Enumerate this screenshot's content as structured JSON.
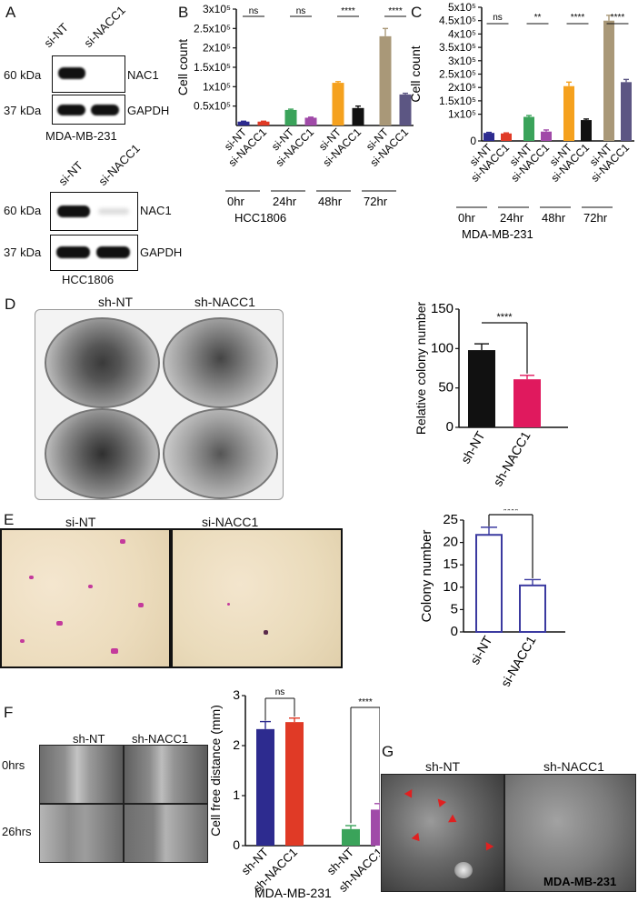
{
  "panels": {
    "A": "A",
    "B": "B",
    "C": "C",
    "D": "D",
    "E": "E",
    "F": "F",
    "G": "G"
  },
  "blotA1": {
    "top_labels": [
      "si-NT",
      "si-NACC1"
    ],
    "rows": [
      {
        "mw": "60 kDa",
        "protein": "NAC1"
      },
      {
        "mw": "37 kDa",
        "protein": "GAPDH"
      }
    ],
    "cell_line": "MDA-MB-231"
  },
  "blotA2": {
    "top_labels": [
      "si-NT",
      "si-NACC1"
    ],
    "rows": [
      {
        "mw": "60 kDa",
        "protein": "NAC1"
      },
      {
        "mw": "37 kDa",
        "protein": "GAPDH"
      }
    ],
    "cell_line": "HCC1806"
  },
  "imgD": {
    "labels": [
      "sh-NT",
      "sh-NACC1"
    ]
  },
  "imgE": {
    "labels": [
      "si-NT",
      "si-NACC1"
    ]
  },
  "imgF": {
    "cols": [
      "sh-NT",
      "sh-NACC1"
    ],
    "rows": [
      "0hrs",
      "26hrs"
    ]
  },
  "imgG": {
    "labels": [
      "sh-NT",
      "sh-NACC1"
    ],
    "cell_line": "MDA-MB-231"
  },
  "colors": {
    "navy": "#2d2b8f",
    "red": "#e03a26",
    "green": "#3aa35a",
    "violet": "#a04aa8",
    "orange": "#f5a11e",
    "black": "#111111",
    "khaki": "#a99878",
    "slate": "#5c5683",
    "pink": "#e0195e",
    "outline": "#3b3aa0"
  },
  "chart_data": [
    {
      "id": "B",
      "type": "bar",
      "ylabel": "Cell count",
      "yticks": [
        "0.5x10⁵",
        "1x10⁵",
        "1.5x10⁵",
        "2x10⁵",
        "2.5x10⁵",
        "3x10⁵"
      ],
      "ytick_values": [
        50000,
        100000,
        150000,
        200000,
        250000,
        300000
      ],
      "ylim": [
        0,
        300000
      ],
      "categories": [
        "si-NT",
        "si-NACC1",
        "si-NT",
        "si-NACC1",
        "si-NT",
        "si-NACC1",
        "si-NT",
        "si-NACC1"
      ],
      "values": [
        10000,
        10000,
        40000,
        20000,
        110000,
        45000,
        230000,
        80000
      ],
      "errors": [
        1000,
        1000,
        2000,
        1500,
        3000,
        5000,
        20000,
        3000
      ],
      "bar_colors": [
        "#2d2b8f",
        "#e03a26",
        "#3aa35a",
        "#a04aa8",
        "#f5a11e",
        "#111111",
        "#a99878",
        "#5c5683"
      ],
      "groups": [
        "0hr",
        "24hr",
        "48hr",
        "72hr"
      ],
      "significance": [
        "ns",
        "ns",
        "****",
        "****"
      ],
      "cell_line": "HCC1806"
    },
    {
      "id": "C",
      "type": "bar",
      "ylabel": "Cell count",
      "yticks": [
        "0",
        "1x10⁵",
        "1.5x10⁵",
        "2x10⁵",
        "2.5x10⁵",
        "3x10⁵",
        "3.5x10⁵",
        "4x10⁵",
        "4.5x10⁵",
        "5x10⁵"
      ],
      "ytick_values": [
        0,
        100000,
        150000,
        200000,
        250000,
        300000,
        350000,
        400000,
        450000,
        500000
      ],
      "ylim": [
        0,
        500000
      ],
      "categories": [
        "si-NT",
        "si-NACC1",
        "si-NT",
        "si-NACC1",
        "si-NT",
        "si-NACC1",
        "si-NT",
        "si-NACC1"
      ],
      "values": [
        30000,
        28000,
        90000,
        35000,
        205000,
        78000,
        450000,
        220000
      ],
      "errors": [
        2000,
        2000,
        5000,
        6000,
        15000,
        4000,
        20000,
        10000
      ],
      "bar_colors": [
        "#2d2b8f",
        "#e03a26",
        "#3aa35a",
        "#a04aa8",
        "#f5a11e",
        "#111111",
        "#a99878",
        "#5c5683"
      ],
      "groups": [
        "0hr",
        "24hr",
        "48hr",
        "72hr"
      ],
      "significance": [
        "ns",
        "**",
        "****",
        "****"
      ],
      "cell_line": "MDA-MB-231"
    },
    {
      "id": "D",
      "type": "bar",
      "ylabel": "Relative colony number",
      "yticks": [
        "0",
        "50",
        "100",
        "150"
      ],
      "ytick_values": [
        0,
        50,
        100,
        150
      ],
      "ylim": [
        0,
        150
      ],
      "categories": [
        "sh-NT",
        "sh-NACC1"
      ],
      "values": [
        98,
        61
      ],
      "errors": [
        8,
        5
      ],
      "bar_colors": [
        "#111111",
        "#e0195e"
      ],
      "significance": [
        "****"
      ]
    },
    {
      "id": "E",
      "type": "bar",
      "ylabel": "Colony number",
      "yticks": [
        "0",
        "5",
        "10",
        "15",
        "20",
        "25"
      ],
      "ytick_values": [
        0,
        5,
        10,
        15,
        20,
        25
      ],
      "ylim": [
        0,
        25
      ],
      "categories": [
        "si-NT",
        "si-NACC1"
      ],
      "values": [
        21.7,
        10.4
      ],
      "errors": [
        1.7,
        1.3
      ],
      "bar_colors": [
        "#ffffff",
        "#ffffff"
      ],
      "significance": [
        "****"
      ]
    },
    {
      "id": "F",
      "type": "bar",
      "ylabel": "Cell free distance (mm)",
      "yticks": [
        "0",
        "1",
        "2",
        "3"
      ],
      "ytick_values": [
        0,
        1,
        2,
        3
      ],
      "ylim": [
        0,
        3
      ],
      "categories": [
        "sh-NT",
        "sh-NACC1",
        "sh-NT",
        "sh-NACC1"
      ],
      "values": [
        2.33,
        2.47,
        0.33,
        0.72
      ],
      "errors": [
        0.15,
        0.08,
        0.07,
        0.12
      ],
      "bar_colors": [
        "#2d2b8f",
        "#e03a26",
        "#3aa35a",
        "#a04aa8"
      ],
      "significance": [
        "ns",
        "****"
      ],
      "cell_line": "MDA-MB-231"
    }
  ]
}
